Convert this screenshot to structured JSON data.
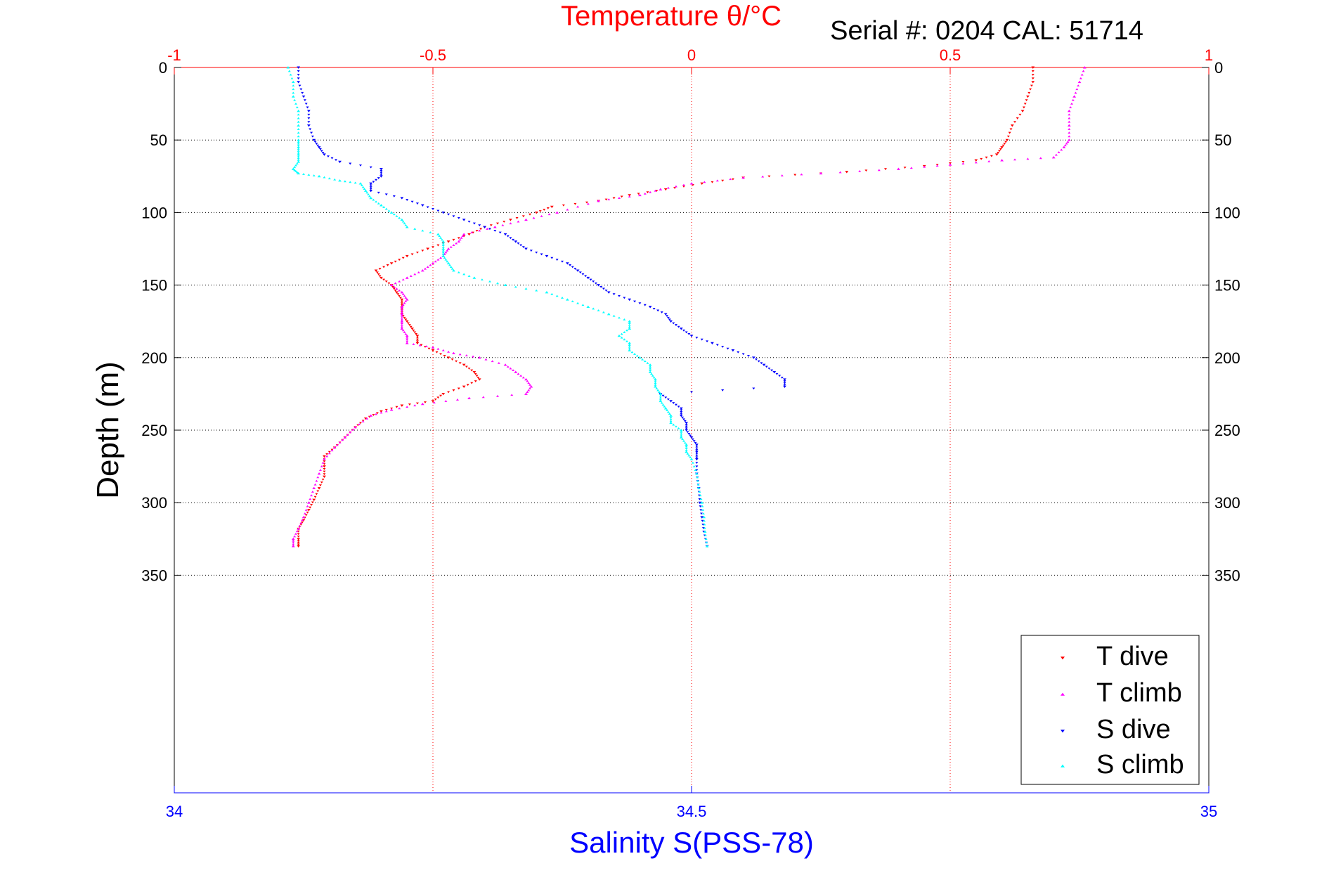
{
  "chart_data": {
    "type": "scatter",
    "title_top": "Temperature θ/°C",
    "subtitle": "Serial #: 0204  CAL: 51714",
    "xlabel_bottom": "Salinity S(PSS-78)",
    "ylabel": "Depth (m)",
    "top_axis": {
      "label": "Temperature θ/°C",
      "range": [
        -1,
        1
      ],
      "ticks": [
        "-1",
        "-0.5",
        "0",
        "0.5",
        "1"
      ],
      "tick_values": [
        -1,
        -0.5,
        0,
        0.5,
        1
      ],
      "color": "#ff0000"
    },
    "bottom_axis": {
      "label": "Salinity S(PSS-78)",
      "range": [
        34,
        35
      ],
      "ticks": [
        "34",
        "34.5",
        "35"
      ],
      "tick_values": [
        34,
        34.5,
        35
      ],
      "color": "#0000ff"
    },
    "y_axis": {
      "range": [
        0,
        500
      ],
      "ticks": [
        "0",
        "50",
        "100",
        "150",
        "200",
        "250",
        "300",
        "350"
      ],
      "tick_values": [
        0,
        50,
        100,
        150,
        200,
        250,
        300,
        350
      ],
      "reversed": true
    },
    "grid": true,
    "legend": {
      "position": "bottom-right",
      "entries": [
        "T dive",
        "T climb",
        "S dive",
        "S climb"
      ]
    },
    "series": [
      {
        "name": "T dive",
        "axis": "top",
        "color": "#ff0000",
        "marker": "triangle-down",
        "points": [
          [
            0.66,
            0
          ],
          [
            0.66,
            10
          ],
          [
            0.65,
            20
          ],
          [
            0.64,
            30
          ],
          [
            0.62,
            40
          ],
          [
            0.61,
            50
          ],
          [
            0.6,
            55
          ],
          [
            0.59,
            60
          ],
          [
            0.55,
            64
          ],
          [
            0.45,
            68
          ],
          [
            0.3,
            72
          ],
          [
            0.1,
            76
          ],
          [
            0.02,
            80
          ],
          [
            -0.05,
            84
          ],
          [
            -0.12,
            88
          ],
          [
            -0.18,
            92
          ],
          [
            -0.27,
            96
          ],
          [
            -0.3,
            100
          ],
          [
            -0.35,
            105
          ],
          [
            -0.4,
            110
          ],
          [
            -0.43,
            115
          ],
          [
            -0.47,
            120
          ],
          [
            -0.51,
            125
          ],
          [
            -0.55,
            130
          ],
          [
            -0.58,
            135
          ],
          [
            -0.61,
            140
          ],
          [
            -0.6,
            145
          ],
          [
            -0.58,
            150
          ],
          [
            -0.57,
            155
          ],
          [
            -0.56,
            160
          ],
          [
            -0.56,
            165
          ],
          [
            -0.56,
            170
          ],
          [
            -0.55,
            175
          ],
          [
            -0.54,
            180
          ],
          [
            -0.53,
            185
          ],
          [
            -0.53,
            190
          ],
          [
            -0.5,
            195
          ],
          [
            -0.47,
            200
          ],
          [
            -0.44,
            205
          ],
          [
            -0.42,
            210
          ],
          [
            -0.41,
            215
          ],
          [
            -0.44,
            220
          ],
          [
            -0.48,
            225
          ],
          [
            -0.5,
            230
          ],
          [
            -0.56,
            233
          ],
          [
            -0.6,
            237
          ],
          [
            -0.63,
            242
          ],
          [
            -0.65,
            248
          ],
          [
            -0.67,
            255
          ],
          [
            -0.69,
            262
          ],
          [
            -0.71,
            268
          ],
          [
            -0.71,
            275
          ],
          [
            -0.71,
            282
          ],
          [
            -0.72,
            290
          ],
          [
            -0.73,
            298
          ],
          [
            -0.74,
            305
          ],
          [
            -0.75,
            312
          ],
          [
            -0.76,
            318
          ],
          [
            -0.76,
            325
          ],
          [
            -0.76,
            330
          ]
        ]
      },
      {
        "name": "T climb",
        "axis": "top",
        "color": "#ff00ff",
        "marker": "triangle-up",
        "points": [
          [
            0.76,
            0
          ],
          [
            0.75,
            10
          ],
          [
            0.74,
            20
          ],
          [
            0.73,
            30
          ],
          [
            0.73,
            40
          ],
          [
            0.73,
            50
          ],
          [
            0.72,
            55
          ],
          [
            0.7,
            62
          ],
          [
            0.6,
            64
          ],
          [
            0.5,
            67
          ],
          [
            0.4,
            70
          ],
          [
            0.25,
            73
          ],
          [
            0.1,
            76
          ],
          [
            0.0,
            80
          ],
          [
            -0.06,
            84
          ],
          [
            -0.1,
            88
          ],
          [
            -0.18,
            92
          ],
          [
            -0.26,
            100
          ],
          [
            -0.32,
            105
          ],
          [
            -0.38,
            110
          ],
          [
            -0.44,
            115
          ],
          [
            -0.45,
            120
          ],
          [
            -0.47,
            125
          ],
          [
            -0.48,
            130
          ],
          [
            -0.5,
            135
          ],
          [
            -0.52,
            140
          ],
          [
            -0.55,
            145
          ],
          [
            -0.58,
            150
          ],
          [
            -0.56,
            155
          ],
          [
            -0.55,
            160
          ],
          [
            -0.56,
            165
          ],
          [
            -0.56,
            170
          ],
          [
            -0.56,
            175
          ],
          [
            -0.56,
            180
          ],
          [
            -0.55,
            185
          ],
          [
            -0.55,
            190
          ],
          [
            -0.5,
            193
          ],
          [
            -0.46,
            197
          ],
          [
            -0.41,
            200
          ],
          [
            -0.36,
            205
          ],
          [
            -0.34,
            210
          ],
          [
            -0.32,
            215
          ],
          [
            -0.31,
            220
          ],
          [
            -0.32,
            225
          ],
          [
            -0.43,
            228
          ],
          [
            -0.52,
            232
          ],
          [
            -0.58,
            236
          ],
          [
            -0.62,
            240
          ],
          [
            -0.65,
            248
          ],
          [
            -0.67,
            255
          ],
          [
            -0.69,
            262
          ],
          [
            -0.71,
            270
          ],
          [
            -0.72,
            280
          ],
          [
            -0.73,
            290
          ],
          [
            -0.74,
            300
          ],
          [
            -0.75,
            310
          ],
          [
            -0.76,
            318
          ],
          [
            -0.77,
            325
          ],
          [
            -0.77,
            330
          ]
        ]
      },
      {
        "name": "S dive",
        "axis": "bottom",
        "color": "#0000ff",
        "marker": "triangle-down",
        "points": [
          [
            34.12,
            0
          ],
          [
            34.12,
            10
          ],
          [
            34.125,
            20
          ],
          [
            34.13,
            30
          ],
          [
            34.13,
            40
          ],
          [
            34.135,
            50
          ],
          [
            34.14,
            55
          ],
          [
            34.145,
            60
          ],
          [
            34.16,
            65
          ],
          [
            34.2,
            70
          ],
          [
            34.2,
            75
          ],
          [
            34.19,
            80
          ],
          [
            34.19,
            85
          ],
          [
            34.22,
            90
          ],
          [
            34.24,
            95
          ],
          [
            34.26,
            100
          ],
          [
            34.28,
            105
          ],
          [
            34.3,
            110
          ],
          [
            34.32,
            115
          ],
          [
            34.33,
            120
          ],
          [
            34.34,
            125
          ],
          [
            34.36,
            130
          ],
          [
            34.38,
            135
          ],
          [
            34.39,
            140
          ],
          [
            34.4,
            145
          ],
          [
            34.41,
            150
          ],
          [
            34.42,
            155
          ],
          [
            34.44,
            160
          ],
          [
            34.46,
            165
          ],
          [
            34.475,
            170
          ],
          [
            34.48,
            175
          ],
          [
            34.49,
            180
          ],
          [
            34.5,
            185
          ],
          [
            34.52,
            190
          ],
          [
            34.54,
            195
          ],
          [
            34.56,
            200
          ],
          [
            34.57,
            205
          ],
          [
            34.58,
            210
          ],
          [
            34.59,
            215
          ],
          [
            34.59,
            220
          ],
          [
            34.47,
            225
          ],
          [
            34.48,
            230
          ],
          [
            34.49,
            235
          ],
          [
            34.49,
            240
          ],
          [
            34.495,
            245
          ],
          [
            34.495,
            250
          ],
          [
            34.5,
            255
          ],
          [
            34.505,
            260
          ],
          [
            34.505,
            265
          ],
          [
            34.505,
            270
          ],
          [
            34.505,
            280
          ],
          [
            34.507,
            290
          ],
          [
            34.508,
            300
          ],
          [
            34.51,
            310
          ],
          [
            34.512,
            320
          ],
          [
            34.515,
            330
          ]
        ]
      },
      {
        "name": "S climb",
        "axis": "bottom",
        "color": "#00ffff",
        "marker": "triangle-up",
        "points": [
          [
            34.11,
            0
          ],
          [
            34.115,
            10
          ],
          [
            34.115,
            20
          ],
          [
            34.12,
            30
          ],
          [
            34.12,
            40
          ],
          [
            34.12,
            50
          ],
          [
            34.12,
            55
          ],
          [
            34.12,
            60
          ],
          [
            34.12,
            65
          ],
          [
            34.115,
            70
          ],
          [
            34.12,
            73
          ],
          [
            34.14,
            75
          ],
          [
            34.16,
            78
          ],
          [
            34.18,
            80
          ],
          [
            34.185,
            85
          ],
          [
            34.19,
            90
          ],
          [
            34.2,
            95
          ],
          [
            34.21,
            100
          ],
          [
            34.22,
            105
          ],
          [
            34.225,
            110
          ],
          [
            34.255,
            115
          ],
          [
            34.26,
            120
          ],
          [
            34.26,
            125
          ],
          [
            34.26,
            130
          ],
          [
            34.265,
            135
          ],
          [
            34.27,
            140
          ],
          [
            34.29,
            145
          ],
          [
            34.32,
            150
          ],
          [
            34.36,
            155
          ],
          [
            34.38,
            160
          ],
          [
            34.4,
            165
          ],
          [
            34.42,
            170
          ],
          [
            34.44,
            175
          ],
          [
            34.44,
            180
          ],
          [
            34.43,
            185
          ],
          [
            34.44,
            190
          ],
          [
            34.44,
            195
          ],
          [
            34.45,
            200
          ],
          [
            34.46,
            205
          ],
          [
            34.46,
            210
          ],
          [
            34.465,
            215
          ],
          [
            34.465,
            220
          ],
          [
            34.47,
            225
          ],
          [
            34.47,
            230
          ],
          [
            34.475,
            235
          ],
          [
            34.48,
            240
          ],
          [
            34.48,
            245
          ],
          [
            34.49,
            250
          ],
          [
            34.49,
            255
          ],
          [
            34.495,
            260
          ],
          [
            34.495,
            265
          ],
          [
            34.5,
            270
          ],
          [
            34.505,
            280
          ],
          [
            34.507,
            290
          ],
          [
            34.51,
            300
          ],
          [
            34.512,
            310
          ],
          [
            34.513,
            320
          ],
          [
            34.515,
            330
          ]
        ]
      }
    ]
  }
}
